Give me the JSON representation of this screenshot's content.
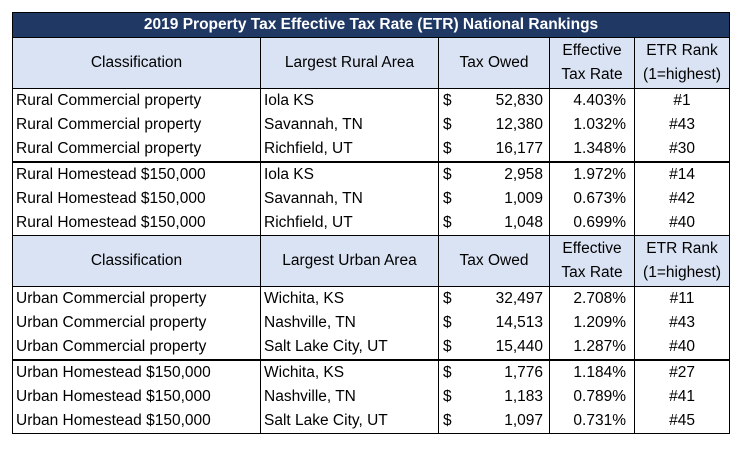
{
  "title": "2019 Property Tax Effective Tax Rate (ETR) National Rankings",
  "rural_header": {
    "classification": "Classification",
    "area": "Largest Rural Area",
    "tax_owed": "Tax Owed",
    "etr_line1": "Effective",
    "etr_line2": "Tax Rate",
    "rank_line1": "ETR Rank",
    "rank_line2": "(1=highest)"
  },
  "urban_header": {
    "classification": "Classification",
    "area": "Largest Urban Area",
    "tax_owed": "Tax Owed",
    "etr_line1": "Effective",
    "etr_line2": "Tax Rate",
    "rank_line1": "ETR Rank",
    "rank_line2": "(1=highest)"
  },
  "rural_rows": [
    {
      "classification": "Rural Commercial property",
      "area": "Iola KS",
      "dollar": "$",
      "tax_owed": "52,830",
      "etr": "4.403%",
      "rank": "#1"
    },
    {
      "classification": "Rural Commercial property",
      "area": "Savannah, TN",
      "dollar": "$",
      "tax_owed": "12,380",
      "etr": "1.032%",
      "rank": "#43"
    },
    {
      "classification": "Rural Commercial property",
      "area": "Richfield, UT",
      "dollar": "$",
      "tax_owed": "16,177",
      "etr": "1.348%",
      "rank": "#30"
    },
    {
      "classification": "Rural Homestead $150,000",
      "area": "Iola KS",
      "dollar": "$",
      "tax_owed": "2,958",
      "etr": "1.972%",
      "rank": "#14"
    },
    {
      "classification": "Rural Homestead $150,000",
      "area": "Savannah, TN",
      "dollar": "$",
      "tax_owed": "1,009",
      "etr": "0.673%",
      "rank": "#42"
    },
    {
      "classification": "Rural Homestead $150,000",
      "area": "Richfield, UT",
      "dollar": "$",
      "tax_owed": "1,048",
      "etr": "0.699%",
      "rank": "#40"
    }
  ],
  "urban_rows": [
    {
      "classification": "Urban Commercial property",
      "area": "Wichita, KS",
      "dollar": "$",
      "tax_owed": "32,497",
      "etr": "2.708%",
      "rank": "#11"
    },
    {
      "classification": "Urban Commercial property",
      "area": "Nashville, TN",
      "dollar": "$",
      "tax_owed": "14,513",
      "etr": "1.209%",
      "rank": "#43"
    },
    {
      "classification": "Urban Commercial property",
      "area": "Salt Lake City, UT",
      "dollar": "$",
      "tax_owed": "15,440",
      "etr": "1.287%",
      "rank": "#40"
    },
    {
      "classification": "Urban Homestead $150,000",
      "area": "Wichita, KS",
      "dollar": "$",
      "tax_owed": "1,776",
      "etr": "1.184%",
      "rank": "#27"
    },
    {
      "classification": "Urban Homestead $150,000",
      "area": "Nashville, TN",
      "dollar": "$",
      "tax_owed": "1,183",
      "etr": "0.789%",
      "rank": "#41"
    },
    {
      "classification": "Urban Homestead $150,000",
      "area": "Salt Lake City, UT",
      "dollar": "$",
      "tax_owed": "1,097",
      "etr": "0.731%",
      "rank": "#45"
    }
  ],
  "colors": {
    "title_bg": "#1f3864",
    "title_text": "#ffffff",
    "header_bg": "#dae3f3"
  }
}
